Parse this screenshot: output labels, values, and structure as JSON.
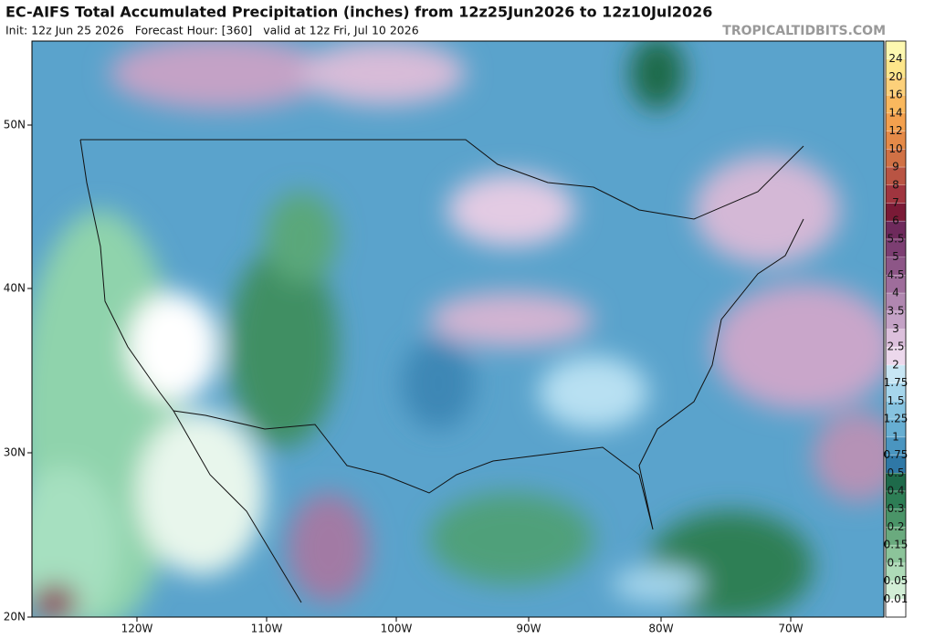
{
  "header": {
    "title": "EC-AIFS Total Accumulated Precipitation (inches) from 12z25Jun2026 to 12z10Jul2026",
    "init": "Init: 12z Jun 25 2026   Forecast Hour: [360]   valid at 12z Fri, Jul 10 2026",
    "watermark": "TROPICALTIDBITS.COM"
  },
  "map": {
    "lat_labels": [
      "50N",
      "40N",
      "30N",
      "20N"
    ],
    "lon_labels": [
      "120W",
      "110W",
      "100W",
      "90W",
      "80W",
      "70W"
    ]
  },
  "colorbar": {
    "labels": [
      24,
      20,
      16,
      14,
      12,
      10,
      9,
      8,
      7,
      6,
      5.5,
      5,
      4.5,
      4,
      3.5,
      3,
      2.5,
      2,
      1.75,
      1.5,
      1.25,
      1,
      0.75,
      0.5,
      0.4,
      0.3,
      0.2,
      0.15,
      0.1,
      0.05,
      0.01
    ],
    "colors": [
      "#fdf8b0",
      "#fde68a",
      "#fcd07a",
      "#f9b85e",
      "#f3a04e",
      "#e58a48",
      "#d07145",
      "#b95443",
      "#a0353f",
      "#7a1a36",
      "#6e2a5c",
      "#7c3e72",
      "#8d5687",
      "#9e6d9b",
      "#b087b0",
      "#c4a2c6",
      "#dcc0dc",
      "#ecd8ec",
      "#c8e6f4",
      "#a6d6ec",
      "#86c3e0",
      "#67aed2",
      "#4a95c0",
      "#2f78a6",
      "#1e6a4a",
      "#2d7d55",
      "#4a9468",
      "#6aaa7e",
      "#8cc49a",
      "#aedbb8",
      "#d2eed6",
      "#ffffff"
    ]
  }
}
